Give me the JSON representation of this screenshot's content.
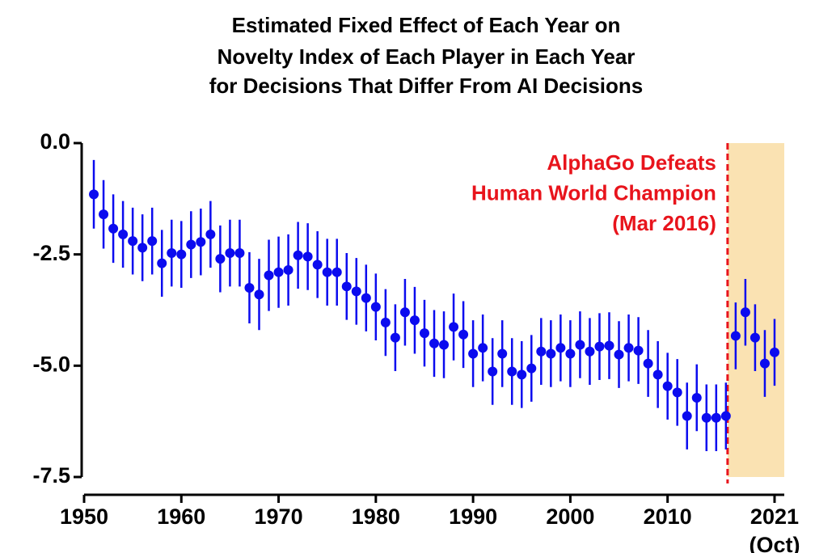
{
  "chart_data": {
    "type": "errorbar",
    "title": [
      "Estimated Fixed Effect of Each Year on",
      "Novelty Index of Each Player in Each Year",
      "for Decisions That Differ From AI Decisions"
    ],
    "annotation": [
      "AlphaGo Defeats",
      "Human World Champion",
      "(Mar 2016)"
    ],
    "event_x": 2016.17,
    "event_color": "#e8141c",
    "shade_color": "#fae2b2",
    "color": "#0b0bef",
    "x": [
      1951,
      1952,
      1953,
      1954,
      1955,
      1956,
      1957,
      1958,
      1959,
      1960,
      1961,
      1962,
      1963,
      1964,
      1965,
      1966,
      1967,
      1968,
      1969,
      1970,
      1971,
      1972,
      1973,
      1974,
      1975,
      1976,
      1977,
      1978,
      1979,
      1980,
      1981,
      1982,
      1983,
      1984,
      1985,
      1986,
      1987,
      1988,
      1989,
      1990,
      1991,
      1992,
      1993,
      1994,
      1995,
      1996,
      1997,
      1998,
      1999,
      2000,
      2001,
      2002,
      2003,
      2004,
      2005,
      2006,
      2007,
      2008,
      2009,
      2010,
      2011,
      2012,
      2013,
      2014,
      2015,
      2016,
      2017,
      2018,
      2019,
      2020,
      2021
    ],
    "values": [
      -1.15,
      -1.6,
      -1.92,
      -2.05,
      -2.2,
      -2.35,
      -2.2,
      -2.7,
      -2.47,
      -2.5,
      -2.28,
      -2.22,
      -2.05,
      -2.6,
      -2.47,
      -2.47,
      -3.25,
      -3.4,
      -2.97,
      -2.9,
      -2.85,
      -2.52,
      -2.55,
      -2.73,
      -2.9,
      -2.9,
      -3.22,
      -3.33,
      -3.48,
      -3.68,
      -4.03,
      -4.37,
      -3.8,
      -3.98,
      -4.27,
      -4.5,
      -4.53,
      -4.13,
      -4.3,
      -4.73,
      -4.6,
      -5.13,
      -4.73,
      -5.13,
      -5.2,
      -5.06,
      -4.68,
      -4.73,
      -4.6,
      -4.73,
      -4.53,
      -4.68,
      -4.57,
      -4.55,
      -4.75,
      -4.6,
      -4.66,
      -4.95,
      -5.2,
      -5.46,
      -5.6,
      -6.13,
      -5.72,
      -6.17,
      -6.17,
      -6.13,
      -4.33,
      -3.8,
      -4.37,
      -4.95,
      -4.7
    ],
    "errors": [
      0.77,
      0.77,
      0.77,
      0.75,
      0.75,
      0.75,
      0.75,
      0.75,
      0.75,
      0.75,
      0.75,
      0.75,
      0.75,
      0.75,
      0.75,
      0.75,
      0.8,
      0.8,
      0.8,
      0.8,
      0.8,
      0.75,
      0.75,
      0.75,
      0.75,
      0.75,
      0.75,
      0.75,
      0.75,
      0.75,
      0.75,
      0.75,
      0.75,
      0.75,
      0.75,
      0.75,
      0.75,
      0.75,
      0.75,
      0.75,
      0.75,
      0.75,
      0.75,
      0.75,
      0.75,
      0.75,
      0.75,
      0.75,
      0.75,
      0.75,
      0.75,
      0.75,
      0.75,
      0.75,
      0.75,
      0.75,
      0.75,
      0.75,
      0.75,
      0.75,
      0.75,
      0.75,
      0.75,
      0.75,
      0.75,
      0.75,
      0.75,
      0.75,
      0.75,
      0.75,
      0.75
    ],
    "xlim": [
      1950,
      2022
    ],
    "ylim": [
      -7.5,
      0
    ],
    "xticks": [
      1950,
      1960,
      1970,
      1980,
      1990,
      2000,
      2010,
      {
        "value": 2021,
        "label": "2021",
        "sublabel": "(Oct)"
      }
    ],
    "yticks": [
      {
        "value": 0,
        "label": "0.0"
      },
      -2.5,
      {
        "value": -5,
        "label": "-5.0"
      },
      -7.5
    ]
  }
}
